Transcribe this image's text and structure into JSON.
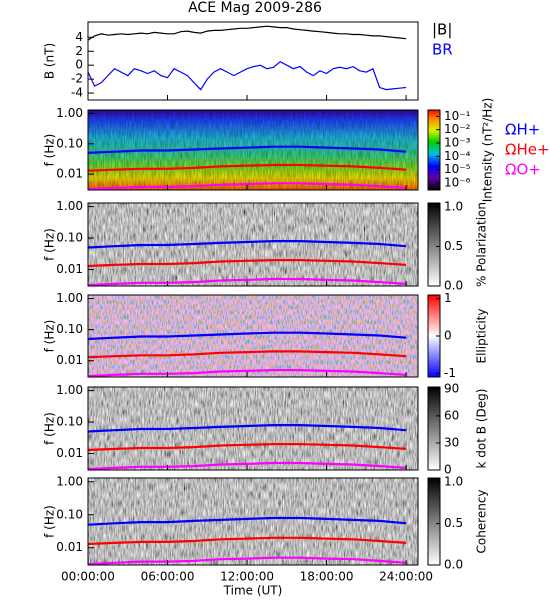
{
  "chart_data": [
    {
      "type": "line",
      "title": "ACE Mag 2009-286",
      "ylabel": "B (nT)",
      "xlim": [
        0,
        24.9
      ],
      "ylim": [
        -5,
        6.2
      ],
      "yticks": [
        -4,
        -2,
        0,
        2,
        4
      ],
      "legend": "right",
      "x": [
        0,
        0.5,
        1,
        1.5,
        2,
        2.5,
        3,
        3.5,
        4,
        4.5,
        5,
        5.5,
        6,
        6.5,
        7,
        7.5,
        8,
        8.5,
        9,
        9.5,
        10,
        10.5,
        11,
        11.5,
        12,
        12.5,
        13,
        13.5,
        14,
        14.5,
        15,
        15.5,
        16,
        16.5,
        17,
        17.5,
        18,
        18.5,
        19,
        19.5,
        20,
        20.5,
        21,
        21.5,
        22,
        22.5,
        23,
        23.5,
        24
      ],
      "series": [
        {
          "name": "|B|",
          "color": "#000000",
          "values": [
            3.6,
            4.2,
            4.5,
            4.3,
            4.4,
            4.5,
            4.4,
            4.5,
            4.6,
            4.5,
            4.7,
            4.6,
            4.5,
            4.5,
            4.8,
            4.9,
            4.7,
            4.6,
            4.9,
            5.0,
            5.0,
            5.1,
            5.2,
            5.3,
            5.3,
            5.4,
            5.5,
            5.6,
            5.5,
            5.4,
            5.4,
            5.2,
            5.1,
            5.0,
            4.9,
            4.8,
            4.7,
            4.6,
            4.5,
            4.5,
            4.4,
            4.4,
            4.3,
            4.2,
            4.2,
            4.1,
            4.0,
            3.9,
            3.8
          ]
        },
        {
          "name": "BR",
          "color": "#0000ff",
          "values": [
            -1.0,
            -3.0,
            -2.5,
            -1.5,
            -0.5,
            -1.0,
            -1.5,
            -0.5,
            -0.8,
            -1.2,
            -0.8,
            -1.5,
            -1.8,
            -0.5,
            -1.0,
            -1.5,
            -2.5,
            -3.5,
            -2.0,
            -1.0,
            -0.5,
            -1.0,
            -1.5,
            -1.0,
            -0.5,
            -0.2,
            0.0,
            -0.5,
            -0.3,
            0.5,
            0.0,
            -0.5,
            -0.2,
            -1.0,
            -1.5,
            -0.8,
            -1.2,
            -0.5,
            -0.3,
            -0.5,
            -0.2,
            -0.8,
            -1.0,
            -0.5,
            -3.2,
            -3.5,
            -3.4,
            -3.3,
            -3.2
          ]
        }
      ]
    },
    {
      "type": "spectrogram",
      "ylabel": "f (Hz)",
      "log": true,
      "xlim": [
        0,
        24.9
      ],
      "ylim": [
        0.003,
        1.3
      ],
      "yticks": [
        {
          "value": 1,
          "label": "1.00"
        },
        {
          "value": 0.1,
          "label": "0.10"
        },
        0.01
      ],
      "legend": "right",
      "colorbar": {
        "label": "Intensity (nT²/Hz)",
        "log": true,
        "lim": [
          3e-07,
          0.3
        ],
        "ticks": [
          {
            "value": 0.1,
            "label": "10⁻¹"
          },
          {
            "value": 0.01,
            "label": "10⁻²"
          },
          {
            "value": 0.001,
            "label": "10⁻³"
          },
          {
            "value": 0.0001,
            "label": "10⁻⁴"
          },
          {
            "value": 1e-05,
            "label": "10⁻⁵"
          },
          {
            "value": 1e-06,
            "label": "10⁻⁶"
          }
        ]
      },
      "x": [
        0,
        2,
        4,
        6,
        8,
        10,
        12,
        14,
        16,
        18,
        20,
        22,
        24
      ],
      "series": [
        {
          "name": "ΩH+",
          "color": "#0000ff",
          "values": [
            0.05,
            0.055,
            0.06,
            0.06,
            0.065,
            0.07,
            0.075,
            0.08,
            0.08,
            0.075,
            0.07,
            0.065,
            0.055
          ]
        },
        {
          "name": "ΩHe+",
          "color": "#ff0000",
          "values": [
            0.013,
            0.014,
            0.015,
            0.015,
            0.016,
            0.018,
            0.019,
            0.02,
            0.02,
            0.019,
            0.018,
            0.016,
            0.014
          ]
        },
        {
          "name": "ΩO+",
          "color": "#ff00ff",
          "values": [
            0.0032,
            0.0035,
            0.0038,
            0.0038,
            0.004,
            0.0045,
            0.0047,
            0.005,
            0.005,
            0.0047,
            0.0045,
            0.004,
            0.0035
          ]
        }
      ]
    },
    {
      "type": "spectrogram",
      "ylabel": "f (Hz)",
      "log": true,
      "xlim": [
        0,
        24.9
      ],
      "ylim": [
        0.003,
        1.3
      ],
      "yticks": [
        {
          "value": 1,
          "label": "1.00"
        },
        {
          "value": 0.1,
          "label": "0.10"
        },
        0.01
      ],
      "colorbar": {
        "label": "% Polarization",
        "lim": [
          0,
          1.05
        ],
        "ticks": [
          {
            "value": 1,
            "label": "1.0"
          },
          0.5,
          {
            "value": 0,
            "label": "0.0"
          }
        ]
      },
      "x": [
        0,
        2,
        4,
        6,
        8,
        10,
        12,
        14,
        16,
        18,
        20,
        22,
        24
      ],
      "series": [
        {
          "color": "#0000ff",
          "values": [
            0.05,
            0.055,
            0.06,
            0.06,
            0.065,
            0.07,
            0.075,
            0.08,
            0.08,
            0.075,
            0.07,
            0.065,
            0.055
          ]
        },
        {
          "color": "#ff0000",
          "values": [
            0.013,
            0.014,
            0.015,
            0.015,
            0.016,
            0.018,
            0.019,
            0.02,
            0.02,
            0.019,
            0.018,
            0.016,
            0.014
          ]
        },
        {
          "color": "#ff00ff",
          "values": [
            0.0032,
            0.0035,
            0.0038,
            0.0038,
            0.004,
            0.0045,
            0.0047,
            0.005,
            0.005,
            0.0047,
            0.0045,
            0.004,
            0.0035
          ]
        }
      ]
    },
    {
      "type": "spectrogram",
      "ylabel": "f (Hz)",
      "log": true,
      "xlim": [
        0,
        24.9
      ],
      "ylim": [
        0.003,
        1.3
      ],
      "yticks": [
        {
          "value": 1,
          "label": "1.00"
        },
        {
          "value": 0.1,
          "label": "0.10"
        },
        0.01
      ],
      "colorbar": {
        "label": "Ellipticity",
        "lim": [
          -1.1,
          1.1
        ],
        "ticks": [
          1,
          0,
          -1
        ]
      },
      "x": [
        0,
        2,
        4,
        6,
        8,
        10,
        12,
        14,
        16,
        18,
        20,
        22,
        24
      ],
      "series": [
        {
          "color": "#0000ff",
          "values": [
            0.05,
            0.055,
            0.06,
            0.06,
            0.065,
            0.07,
            0.075,
            0.08,
            0.08,
            0.075,
            0.07,
            0.065,
            0.055
          ]
        },
        {
          "color": "#ff0000",
          "values": [
            0.013,
            0.014,
            0.015,
            0.015,
            0.016,
            0.018,
            0.019,
            0.02,
            0.02,
            0.019,
            0.018,
            0.016,
            0.014
          ]
        },
        {
          "color": "#ff00ff",
          "values": [
            0.0032,
            0.0035,
            0.0038,
            0.0038,
            0.004,
            0.0045,
            0.0047,
            0.005,
            0.005,
            0.0047,
            0.0045,
            0.004,
            0.0035
          ]
        }
      ]
    },
    {
      "type": "spectrogram",
      "ylabel": "f (Hz)",
      "log": true,
      "xlim": [
        0,
        24.9
      ],
      "ylim": [
        0.003,
        1.3
      ],
      "yticks": [
        {
          "value": 1,
          "label": "1.00"
        },
        {
          "value": 0.1,
          "label": "0.10"
        },
        0.01
      ],
      "colorbar": {
        "label": "k dot B (Deg)",
        "lim": [
          0,
          92
        ],
        "ticks": [
          90,
          60,
          30,
          0
        ]
      },
      "x": [
        0,
        2,
        4,
        6,
        8,
        10,
        12,
        14,
        16,
        18,
        20,
        22,
        24
      ],
      "series": [
        {
          "color": "#0000ff",
          "values": [
            0.05,
            0.055,
            0.06,
            0.06,
            0.065,
            0.07,
            0.075,
            0.08,
            0.08,
            0.075,
            0.07,
            0.065,
            0.055
          ]
        },
        {
          "color": "#ff0000",
          "values": [
            0.013,
            0.014,
            0.015,
            0.015,
            0.016,
            0.018,
            0.019,
            0.02,
            0.02,
            0.019,
            0.018,
            0.016,
            0.014
          ]
        },
        {
          "color": "#ff00ff",
          "values": [
            0.0032,
            0.0035,
            0.0038,
            0.0038,
            0.004,
            0.0045,
            0.0047,
            0.005,
            0.005,
            0.0047,
            0.0045,
            0.004,
            0.0035
          ]
        }
      ]
    },
    {
      "type": "spectrogram",
      "ylabel": "f (Hz)",
      "log": true,
      "xlim": [
        0,
        24.9
      ],
      "ylim": [
        0.003,
        1.3
      ],
      "yticks": [
        {
          "value": 1,
          "label": "1.00"
        },
        {
          "value": 0.1,
          "label": "0.10"
        },
        0.01
      ],
      "colorbar": {
        "label": "Coherency",
        "lim": [
          0,
          1.05
        ],
        "ticks": [
          {
            "value": 1,
            "label": "1.0"
          },
          0.5,
          {
            "value": 0,
            "label": "0.0"
          }
        ]
      },
      "xlabel": "Time (UT)",
      "xticks": [
        {
          "value": 0,
          "label": "00:00:00"
        },
        {
          "value": 6,
          "label": "06:00:00"
        },
        {
          "value": 12,
          "label": "12:00:00"
        },
        {
          "value": 18,
          "label": "18:00:00"
        },
        {
          "value": 24,
          "label": "24:00:00"
        }
      ],
      "x": [
        0,
        2,
        4,
        6,
        8,
        10,
        12,
        14,
        16,
        18,
        20,
        22,
        24
      ],
      "series": [
        {
          "color": "#0000ff",
          "values": [
            0.05,
            0.055,
            0.06,
            0.06,
            0.065,
            0.07,
            0.075,
            0.08,
            0.08,
            0.075,
            0.07,
            0.065,
            0.055
          ]
        },
        {
          "color": "#ff0000",
          "values": [
            0.013,
            0.014,
            0.015,
            0.015,
            0.016,
            0.018,
            0.019,
            0.02,
            0.02,
            0.019,
            0.018,
            0.016,
            0.014
          ]
        },
        {
          "color": "#ff00ff",
          "values": [
            0.0032,
            0.0035,
            0.0038,
            0.0038,
            0.004,
            0.0045,
            0.0047,
            0.005,
            0.005,
            0.0047,
            0.0045,
            0.004,
            0.0035
          ]
        }
      ]
    }
  ]
}
